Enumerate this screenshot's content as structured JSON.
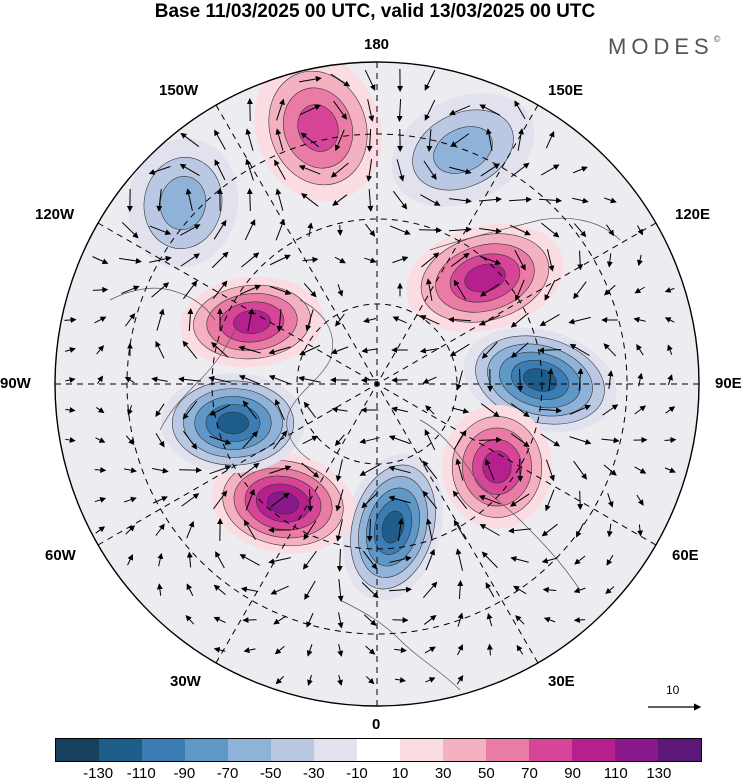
{
  "title": "Base 11/03/2025 00 UTC, valid 13/03/2025 00 UTC",
  "brand": "MODES",
  "brand_mark": "©",
  "longitude_labels": {
    "lon_180": "180",
    "lon_150w": "150W",
    "lon_150e": "150E",
    "lon_120w": "120W",
    "lon_120e": "120E",
    "lon_90w": "90W",
    "lon_90e": "90E",
    "lon_60w": "60W",
    "lon_60e": "60E",
    "lon_30w": "30W",
    "lon_30e": "30E",
    "lon_0": "0"
  },
  "wind_scale_label": "10",
  "colorbar": {
    "tick_labels": [
      "-130",
      "-110",
      "-90",
      "-70",
      "-50",
      "-30",
      "-10",
      "10",
      "30",
      "50",
      "70",
      "90",
      "110",
      "130"
    ],
    "colors": [
      "#16405e",
      "#1e5d8a",
      "#3a7cb3",
      "#5f97c7",
      "#8fb2d9",
      "#bac8e3",
      "#e2e2ef",
      "#ffffff",
      "#fadce2",
      "#f4b1c1",
      "#ea7ba5",
      "#d64597",
      "#b51f8e",
      "#8a188a",
      "#5c1879"
    ]
  },
  "anomaly_centers": [
    {
      "name": "180-high",
      "sign": "positive",
      "peak": 90
    },
    {
      "name": "150e-low",
      "sign": "negative",
      "peak": -70
    },
    {
      "name": "120e-high",
      "sign": "positive",
      "peak": 110
    },
    {
      "name": "90e-low",
      "sign": "negative",
      "peak": -130
    },
    {
      "name": "60e-high",
      "sign": "positive",
      "peak": 110
    },
    {
      "name": "0-low",
      "sign": "negative",
      "peak": -130
    },
    {
      "name": "60w-high",
      "sign": "positive",
      "peak": 130
    },
    {
      "name": "90w-low",
      "sign": "negative",
      "peak": -130
    },
    {
      "name": "120w-high",
      "sign": "positive",
      "peak": 110
    },
    {
      "name": "150w-low",
      "sign": "negative",
      "peak": -70
    }
  ]
}
